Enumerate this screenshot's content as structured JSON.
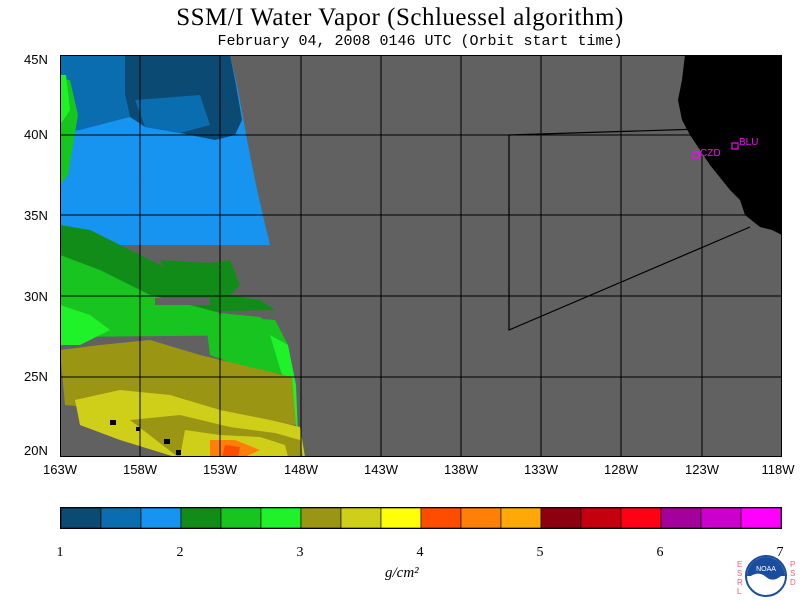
{
  "title": "SSM/I Water Vapor (Schluessel algorithm)",
  "subtitle": "February 04, 2008  0146 UTC  (Orbit start time)",
  "lat_labels": [
    "45N",
    "40N",
    "35N",
    "30N",
    "25N",
    "20N"
  ],
  "lon_labels": [
    "163W",
    "158W",
    "153W",
    "148W",
    "143W",
    "138W",
    "133W",
    "128W",
    "123W",
    "118W"
  ],
  "stations": [
    {
      "label": "CZD"
    },
    {
      "label": "BLU"
    }
  ],
  "colorbar": {
    "tick_labels": [
      "1",
      "2",
      "3",
      "4",
      "5",
      "6",
      "7"
    ],
    "unit": "g/cm²",
    "colors": [
      "#0b4a73",
      "#0a6db0",
      "#1793f0",
      "#128c19",
      "#18c41f",
      "#20f22a",
      "#9a9614",
      "#cfcf1a",
      "#ffff08",
      "#ff4d00",
      "#ff7f08",
      "#ffa808",
      "#8c0010",
      "#c4000f",
      "#ff0014",
      "#a3009c",
      "#cc00cc",
      "#ff00ff"
    ]
  },
  "logo": {
    "agency": "NOAA",
    "side_left": "ESRL",
    "side_right": "PSD"
  },
  "colors": {
    "no_data": "#616161",
    "land": "#000000",
    "station": "#ff00ff"
  }
}
